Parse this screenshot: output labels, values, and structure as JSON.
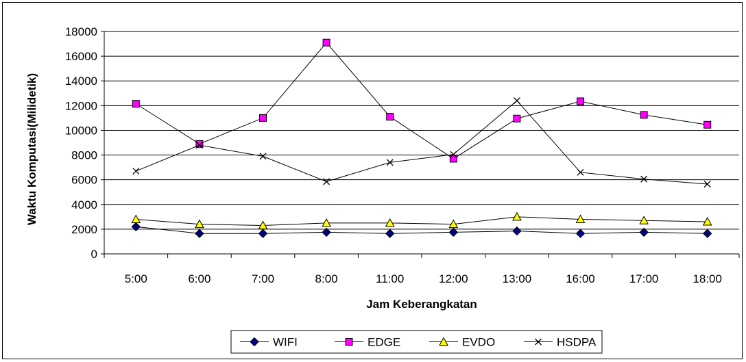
{
  "chart_data": {
    "type": "line",
    "title": "",
    "xlabel": "Jam Keberangkatan",
    "ylabel": "Waktu Komputasi(Milidetik)",
    "ylim": [
      0,
      18000
    ],
    "yticks": [
      0,
      2000,
      4000,
      6000,
      8000,
      10000,
      12000,
      14000,
      16000,
      18000
    ],
    "grid": "horizontal",
    "legend_position": "bottom",
    "categories": [
      "5:00",
      "6:00",
      "7:00",
      "8:00",
      "11:00",
      "12:00",
      "13:00",
      "16:00",
      "17:00",
      "18:00"
    ],
    "series": [
      {
        "name": "WIFI",
        "marker": "diamond",
        "color": "#000080",
        "values": [
          2200,
          1650,
          1650,
          1750,
          1650,
          1750,
          1850,
          1650,
          1750,
          1650
        ]
      },
      {
        "name": "EDGE",
        "marker": "square",
        "color": "#FF00FF",
        "values": [
          12150,
          8900,
          11000,
          17100,
          11100,
          7700,
          10950,
          12350,
          11250,
          10450
        ]
      },
      {
        "name": "EVDO",
        "marker": "triangle",
        "color": "#FFFF00",
        "values": [
          2800,
          2400,
          2300,
          2500,
          2500,
          2400,
          3000,
          2800,
          2700,
          2600
        ]
      },
      {
        "name": "HSDPA",
        "marker": "x",
        "color": "#000000",
        "values": [
          6700,
          8800,
          7900,
          5850,
          7400,
          8050,
          12400,
          6600,
          6050,
          5650
        ]
      }
    ]
  }
}
